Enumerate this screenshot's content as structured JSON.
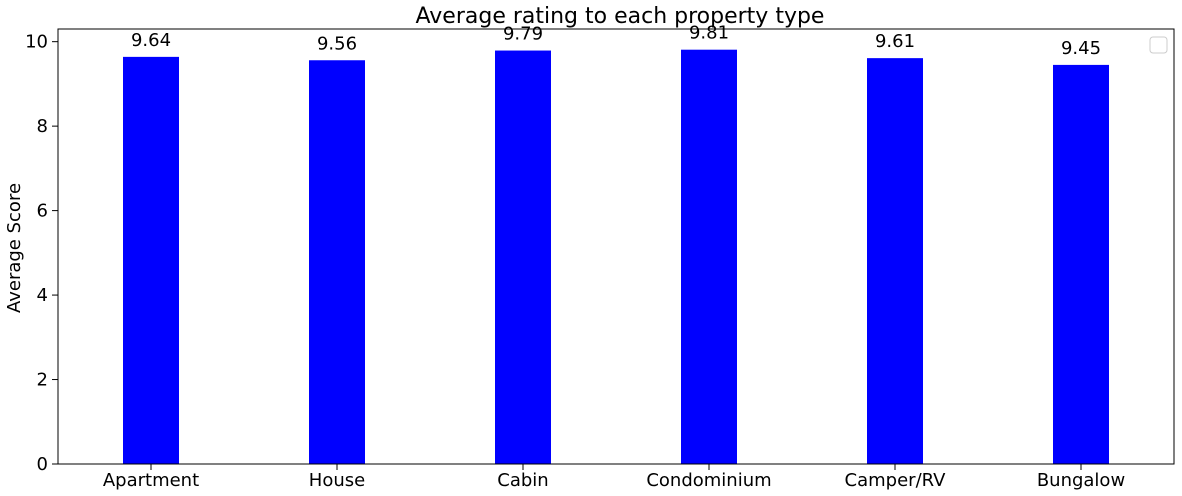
{
  "colors": {
    "bar": "#0000ff",
    "axis": "#000000",
    "background": "#ffffff"
  },
  "chart_data": {
    "type": "bar",
    "title": "Average rating to each property type",
    "xlabel": "",
    "ylabel": "Average Score",
    "categories": [
      "Apartment",
      "House",
      "Cabin",
      "Condominium",
      "Camper/RV",
      "Bungalow"
    ],
    "values": [
      9.64,
      9.56,
      9.79,
      9.81,
      9.61,
      9.45
    ],
    "data_labels": [
      "9.64",
      "9.56",
      "9.79",
      "9.81",
      "9.61",
      "9.45"
    ],
    "ylim": [
      0,
      10.3
    ],
    "yticks": [
      0,
      2,
      4,
      6,
      8,
      10
    ],
    "ytick_labels": [
      "0",
      "2",
      "4",
      "6",
      "8",
      "10"
    ],
    "grid": false,
    "legend": {
      "placement": "top-right",
      "entries": []
    }
  }
}
